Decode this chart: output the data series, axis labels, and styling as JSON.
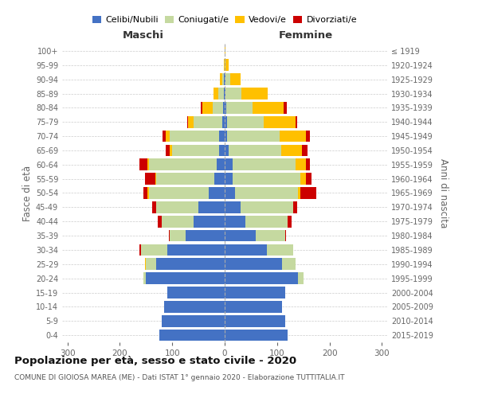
{
  "age_groups": [
    "0-4",
    "5-9",
    "10-14",
    "15-19",
    "20-24",
    "25-29",
    "30-34",
    "35-39",
    "40-44",
    "45-49",
    "50-54",
    "55-59",
    "60-64",
    "65-69",
    "70-74",
    "75-79",
    "80-84",
    "85-89",
    "90-94",
    "95-99",
    "100+"
  ],
  "birth_years": [
    "2015-2019",
    "2010-2014",
    "2005-2009",
    "2000-2004",
    "1995-1999",
    "1990-1994",
    "1985-1989",
    "1980-1984",
    "1975-1979",
    "1970-1974",
    "1965-1969",
    "1960-1964",
    "1955-1959",
    "1950-1954",
    "1945-1949",
    "1940-1944",
    "1935-1939",
    "1930-1934",
    "1925-1929",
    "1920-1924",
    "≤ 1919"
  ],
  "colors": {
    "celibi": "#4472c4",
    "coniugati": "#c5d9a0",
    "vedovi": "#ffc000",
    "divorziati": "#cc0000"
  },
  "maschi": {
    "celibi": [
      125,
      120,
      115,
      110,
      150,
      130,
      110,
      75,
      60,
      50,
      30,
      20,
      15,
      10,
      10,
      5,
      3,
      2,
      1,
      0,
      0
    ],
    "coniugati": [
      0,
      0,
      0,
      0,
      5,
      20,
      50,
      30,
      60,
      80,
      115,
      110,
      130,
      90,
      95,
      55,
      20,
      10,
      3,
      0,
      0
    ],
    "vedovi": [
      0,
      0,
      0,
      0,
      0,
      2,
      0,
      0,
      0,
      0,
      2,
      2,
      3,
      5,
      8,
      10,
      20,
      10,
      5,
      2,
      0
    ],
    "divorziati": [
      0,
      0,
      0,
      0,
      0,
      0,
      2,
      2,
      8,
      8,
      8,
      20,
      15,
      8,
      5,
      2,
      2,
      0,
      0,
      0,
      0
    ]
  },
  "femmine": {
    "celibi": [
      120,
      115,
      110,
      115,
      140,
      110,
      80,
      60,
      40,
      30,
      20,
      15,
      15,
      8,
      5,
      5,
      3,
      2,
      1,
      0,
      0
    ],
    "coniugati": [
      0,
      0,
      0,
      0,
      10,
      25,
      50,
      55,
      80,
      100,
      120,
      130,
      120,
      100,
      100,
      70,
      50,
      30,
      10,
      2,
      0
    ],
    "vedovi": [
      0,
      0,
      0,
      0,
      0,
      0,
      0,
      0,
      0,
      0,
      5,
      10,
      20,
      40,
      50,
      60,
      60,
      50,
      20,
      5,
      2
    ],
    "divorziati": [
      0,
      0,
      0,
      0,
      0,
      0,
      0,
      2,
      8,
      8,
      30,
      10,
      8,
      10,
      8,
      3,
      5,
      0,
      0,
      0,
      0
    ]
  },
  "title": "Popolazione per età, sesso e stato civile - 2020",
  "subtitle": "COMUNE DI GIOIOSA MAREA (ME) - Dati ISTAT 1° gennaio 2020 - Elaborazione TUTTITALIA.IT",
  "xlabel_left": "Maschi",
  "xlabel_right": "Femmine",
  "ylabel_left": "Fasce di età",
  "ylabel_right": "Anni di nascita",
  "legend_labels": [
    "Celibi/Nubili",
    "Coniugati/e",
    "Vedovi/e",
    "Divorziati/e"
  ],
  "xlim": 310,
  "figsize": [
    6.0,
    5.0
  ],
  "dpi": 100
}
